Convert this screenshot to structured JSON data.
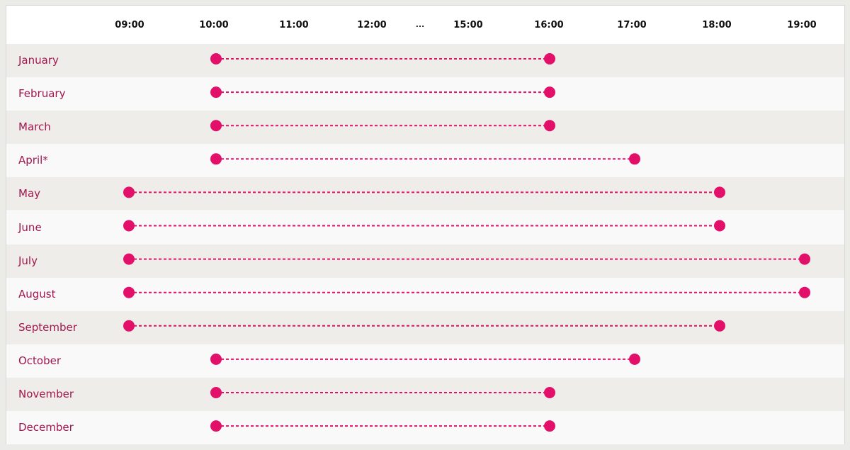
{
  "chart_data": {
    "type": "dumbbell",
    "title": "",
    "xlabel": "",
    "ylabel": "",
    "x_ticks": [
      "09:00",
      "10:00",
      "11:00",
      "12:00",
      "…",
      "15:00",
      "16:00",
      "17:00",
      "18:00",
      "19:00"
    ],
    "categories": [
      "January",
      "February",
      "March",
      "April*",
      "May",
      "June",
      "July",
      "August",
      "September",
      "October",
      "November",
      "December"
    ],
    "ranges": [
      {
        "month": "January",
        "open": "10:00",
        "close": "16:00"
      },
      {
        "month": "February",
        "open": "10:00",
        "close": "16:00"
      },
      {
        "month": "March",
        "open": "10:00",
        "close": "16:00"
      },
      {
        "month": "April*",
        "open": "10:00",
        "close": "17:00"
      },
      {
        "month": "May",
        "open": "09:00",
        "close": "18:00"
      },
      {
        "month": "June",
        "open": "09:00",
        "close": "18:00"
      },
      {
        "month": "July",
        "open": "09:00",
        "close": "19:00"
      },
      {
        "month": "August",
        "open": "09:00",
        "close": "19:00"
      },
      {
        "month": "September",
        "open": "09:00",
        "close": "18:00"
      },
      {
        "month": "October",
        "open": "10:00",
        "close": "17:00"
      },
      {
        "month": "November",
        "open": "10:00",
        "close": "16:00"
      },
      {
        "month": "December",
        "open": "10:00",
        "close": "16:00"
      }
    ],
    "colors": {
      "marker": "#e3106a",
      "label": "#a3164f",
      "row_alt": "#eeede9",
      "row_base": "#f9f9f9"
    }
  }
}
